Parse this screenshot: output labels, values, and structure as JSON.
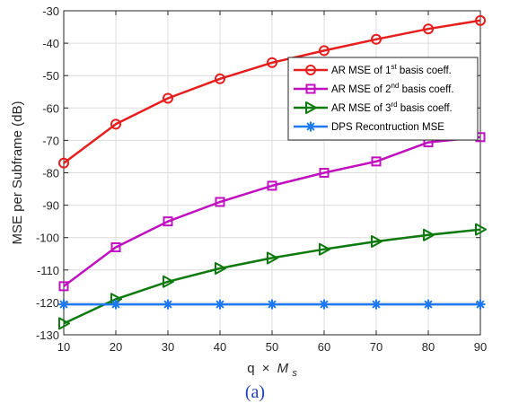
{
  "chart_data": {
    "type": "line",
    "caption": "(a)",
    "xlabel": {
      "main": "q",
      "operator": "×",
      "symbol": "M",
      "subscript": "s"
    },
    "ylabel": "MSE per Subframe (dB)",
    "xlim": [
      10,
      90
    ],
    "ylim": [
      -130,
      -30
    ],
    "xticks": [
      10,
      20,
      30,
      40,
      50,
      60,
      70,
      80,
      90
    ],
    "yticks": [
      -130,
      -120,
      -110,
      -100,
      -90,
      -80,
      -70,
      -60,
      -50,
      -40,
      -30
    ],
    "grid": true,
    "legend_position": "top-right",
    "x": [
      10,
      20,
      30,
      40,
      50,
      60,
      70,
      80,
      90
    ],
    "series": [
      {
        "legend": {
          "prefix": "AR MSE of 1",
          "sup": "st",
          "suffix": " basis coeff."
        },
        "color": "#e61e1e",
        "marker": "circle",
        "values": [
          -77,
          -65,
          -57,
          -51,
          -46,
          -42.3,
          -38.8,
          -35.6,
          -33
        ]
      },
      {
        "legend": {
          "prefix": "AR MSE of 2",
          "sup": "nd",
          "suffix": " basis coeff."
        },
        "color": "#c010c0",
        "marker": "square",
        "values": [
          -115,
          -103,
          -95,
          -89,
          -84,
          -80,
          -76.5,
          -70.6,
          -69
        ]
      },
      {
        "legend": {
          "prefix": "AR  MSE of 3",
          "sup": "rd",
          "suffix": " basis coeff."
        },
        "color": "#0e7a0e",
        "marker": "triangle-right",
        "values": [
          -126.5,
          -119,
          -113.6,
          -109.5,
          -106.3,
          -103.6,
          -101.2,
          -99.2,
          -97.5
        ]
      },
      {
        "legend": {
          "prefix": "DPS Recontruction MSE",
          "sup": "",
          "suffix": ""
        },
        "color": "#1e78f0",
        "marker": "asterisk",
        "values": [
          -120.6,
          -120.6,
          -120.6,
          -120.6,
          -120.6,
          -120.6,
          -120.6,
          -120.6,
          -120.6
        ]
      }
    ]
  }
}
